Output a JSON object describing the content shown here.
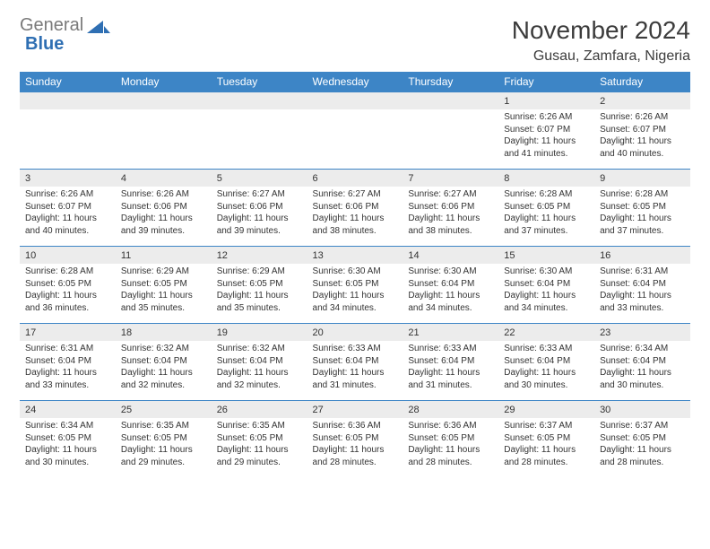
{
  "logo": {
    "text_gray": "General",
    "text_blue": "Blue"
  },
  "title": "November 2024",
  "location": "Gusau, Zamfara, Nigeria",
  "colors": {
    "header_bg": "#3d85c6",
    "header_text": "#ffffff",
    "daynum_bg": "#ececec",
    "row_divider": "#3d85c6",
    "body_text": "#333333",
    "logo_gray": "#7a7a7a",
    "logo_blue": "#2f6fb3"
  },
  "weekdays": [
    "Sunday",
    "Monday",
    "Tuesday",
    "Wednesday",
    "Thursday",
    "Friday",
    "Saturday"
  ],
  "weeks": [
    {
      "nums": [
        "",
        "",
        "",
        "",
        "",
        "1",
        "2"
      ],
      "cells": [
        null,
        null,
        null,
        null,
        null,
        {
          "sunrise": "Sunrise: 6:26 AM",
          "sunset": "Sunset: 6:07 PM",
          "day1": "Daylight: 11 hours",
          "day2": "and 41 minutes."
        },
        {
          "sunrise": "Sunrise: 6:26 AM",
          "sunset": "Sunset: 6:07 PM",
          "day1": "Daylight: 11 hours",
          "day2": "and 40 minutes."
        }
      ]
    },
    {
      "nums": [
        "3",
        "4",
        "5",
        "6",
        "7",
        "8",
        "9"
      ],
      "cells": [
        {
          "sunrise": "Sunrise: 6:26 AM",
          "sunset": "Sunset: 6:07 PM",
          "day1": "Daylight: 11 hours",
          "day2": "and 40 minutes."
        },
        {
          "sunrise": "Sunrise: 6:26 AM",
          "sunset": "Sunset: 6:06 PM",
          "day1": "Daylight: 11 hours",
          "day2": "and 39 minutes."
        },
        {
          "sunrise": "Sunrise: 6:27 AM",
          "sunset": "Sunset: 6:06 PM",
          "day1": "Daylight: 11 hours",
          "day2": "and 39 minutes."
        },
        {
          "sunrise": "Sunrise: 6:27 AM",
          "sunset": "Sunset: 6:06 PM",
          "day1": "Daylight: 11 hours",
          "day2": "and 38 minutes."
        },
        {
          "sunrise": "Sunrise: 6:27 AM",
          "sunset": "Sunset: 6:06 PM",
          "day1": "Daylight: 11 hours",
          "day2": "and 38 minutes."
        },
        {
          "sunrise": "Sunrise: 6:28 AM",
          "sunset": "Sunset: 6:05 PM",
          "day1": "Daylight: 11 hours",
          "day2": "and 37 minutes."
        },
        {
          "sunrise": "Sunrise: 6:28 AM",
          "sunset": "Sunset: 6:05 PM",
          "day1": "Daylight: 11 hours",
          "day2": "and 37 minutes."
        }
      ]
    },
    {
      "nums": [
        "10",
        "11",
        "12",
        "13",
        "14",
        "15",
        "16"
      ],
      "cells": [
        {
          "sunrise": "Sunrise: 6:28 AM",
          "sunset": "Sunset: 6:05 PM",
          "day1": "Daylight: 11 hours",
          "day2": "and 36 minutes."
        },
        {
          "sunrise": "Sunrise: 6:29 AM",
          "sunset": "Sunset: 6:05 PM",
          "day1": "Daylight: 11 hours",
          "day2": "and 35 minutes."
        },
        {
          "sunrise": "Sunrise: 6:29 AM",
          "sunset": "Sunset: 6:05 PM",
          "day1": "Daylight: 11 hours",
          "day2": "and 35 minutes."
        },
        {
          "sunrise": "Sunrise: 6:30 AM",
          "sunset": "Sunset: 6:05 PM",
          "day1": "Daylight: 11 hours",
          "day2": "and 34 minutes."
        },
        {
          "sunrise": "Sunrise: 6:30 AM",
          "sunset": "Sunset: 6:04 PM",
          "day1": "Daylight: 11 hours",
          "day2": "and 34 minutes."
        },
        {
          "sunrise": "Sunrise: 6:30 AM",
          "sunset": "Sunset: 6:04 PM",
          "day1": "Daylight: 11 hours",
          "day2": "and 34 minutes."
        },
        {
          "sunrise": "Sunrise: 6:31 AM",
          "sunset": "Sunset: 6:04 PM",
          "day1": "Daylight: 11 hours",
          "day2": "and 33 minutes."
        }
      ]
    },
    {
      "nums": [
        "17",
        "18",
        "19",
        "20",
        "21",
        "22",
        "23"
      ],
      "cells": [
        {
          "sunrise": "Sunrise: 6:31 AM",
          "sunset": "Sunset: 6:04 PM",
          "day1": "Daylight: 11 hours",
          "day2": "and 33 minutes."
        },
        {
          "sunrise": "Sunrise: 6:32 AM",
          "sunset": "Sunset: 6:04 PM",
          "day1": "Daylight: 11 hours",
          "day2": "and 32 minutes."
        },
        {
          "sunrise": "Sunrise: 6:32 AM",
          "sunset": "Sunset: 6:04 PM",
          "day1": "Daylight: 11 hours",
          "day2": "and 32 minutes."
        },
        {
          "sunrise": "Sunrise: 6:33 AM",
          "sunset": "Sunset: 6:04 PM",
          "day1": "Daylight: 11 hours",
          "day2": "and 31 minutes."
        },
        {
          "sunrise": "Sunrise: 6:33 AM",
          "sunset": "Sunset: 6:04 PM",
          "day1": "Daylight: 11 hours",
          "day2": "and 31 minutes."
        },
        {
          "sunrise": "Sunrise: 6:33 AM",
          "sunset": "Sunset: 6:04 PM",
          "day1": "Daylight: 11 hours",
          "day2": "and 30 minutes."
        },
        {
          "sunrise": "Sunrise: 6:34 AM",
          "sunset": "Sunset: 6:04 PM",
          "day1": "Daylight: 11 hours",
          "day2": "and 30 minutes."
        }
      ]
    },
    {
      "nums": [
        "24",
        "25",
        "26",
        "27",
        "28",
        "29",
        "30"
      ],
      "cells": [
        {
          "sunrise": "Sunrise: 6:34 AM",
          "sunset": "Sunset: 6:05 PM",
          "day1": "Daylight: 11 hours",
          "day2": "and 30 minutes."
        },
        {
          "sunrise": "Sunrise: 6:35 AM",
          "sunset": "Sunset: 6:05 PM",
          "day1": "Daylight: 11 hours",
          "day2": "and 29 minutes."
        },
        {
          "sunrise": "Sunrise: 6:35 AM",
          "sunset": "Sunset: 6:05 PM",
          "day1": "Daylight: 11 hours",
          "day2": "and 29 minutes."
        },
        {
          "sunrise": "Sunrise: 6:36 AM",
          "sunset": "Sunset: 6:05 PM",
          "day1": "Daylight: 11 hours",
          "day2": "and 28 minutes."
        },
        {
          "sunrise": "Sunrise: 6:36 AM",
          "sunset": "Sunset: 6:05 PM",
          "day1": "Daylight: 11 hours",
          "day2": "and 28 minutes."
        },
        {
          "sunrise": "Sunrise: 6:37 AM",
          "sunset": "Sunset: 6:05 PM",
          "day1": "Daylight: 11 hours",
          "day2": "and 28 minutes."
        },
        {
          "sunrise": "Sunrise: 6:37 AM",
          "sunset": "Sunset: 6:05 PM",
          "day1": "Daylight: 11 hours",
          "day2": "and 28 minutes."
        }
      ]
    }
  ]
}
